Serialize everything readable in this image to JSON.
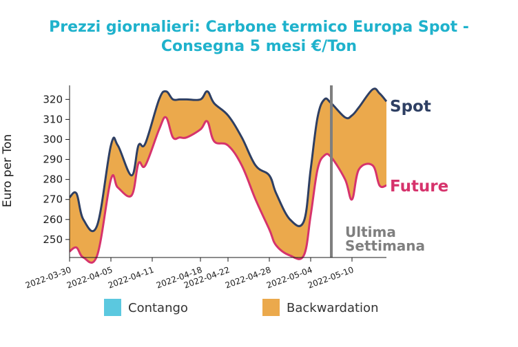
{
  "chart_data": {
    "type": "area",
    "title_line1": "Prezzi giornalieri: Carbone termico Europa Spot -",
    "title_line2": "Consegna 5 mesi €/Ton",
    "ylabel": "Euro per Ton",
    "ylim": [
      241,
      327
    ],
    "yticks": [
      250,
      260,
      270,
      280,
      290,
      300,
      310,
      320
    ],
    "xlim": [
      "2022-03-30",
      "2022-05-15"
    ],
    "xticks": [
      "2022-03-30",
      "2022-04-05",
      "2022-04-11",
      "2022-04-18",
      "2022-04-22",
      "2022-04-28",
      "2022-05-04",
      "2022-05-10"
    ],
    "dates": [
      "2022-03-30",
      "2022-03-31",
      "2022-04-01",
      "2022-04-03",
      "2022-04-05",
      "2022-04-06",
      "2022-04-08",
      "2022-04-09",
      "2022-04-10",
      "2022-04-12",
      "2022-04-13",
      "2022-04-14",
      "2022-04-15",
      "2022-04-16",
      "2022-04-18",
      "2022-04-19",
      "2022-04-20",
      "2022-04-22",
      "2022-04-24",
      "2022-04-26",
      "2022-04-28",
      "2022-04-29",
      "2022-05-01",
      "2022-05-03",
      "2022-05-04",
      "2022-05-05",
      "2022-05-06",
      "2022-05-07",
      "2022-05-09",
      "2022-05-10",
      "2022-05-11",
      "2022-05-13",
      "2022-05-14",
      "2022-05-15"
    ],
    "series": [
      {
        "name": "Spot",
        "color": "#2e3f63",
        "values": [
          271,
          273,
          260,
          257,
          297,
          297,
          282,
          297,
          298,
          320,
          324,
          320,
          320,
          320,
          320,
          324,
          318,
          312,
          301,
          287,
          282,
          273,
          260,
          259,
          285,
          311,
          320,
          318,
          311,
          312,
          316,
          325,
          323,
          319
        ]
      },
      {
        "name": "Future",
        "color": "#d6336c",
        "values": [
          244,
          246,
          241,
          242,
          280,
          276,
          272,
          288,
          287,
          305,
          311,
          301,
          301,
          301,
          305,
          309,
          299,
          297,
          287,
          270,
          255,
          247,
          242,
          242,
          262,
          285,
          292,
          291,
          280,
          270,
          285,
          287,
          277,
          277
        ]
      }
    ],
    "fill_colors": {
      "contango": "#5bc8df",
      "backwardation": "#eba94c"
    },
    "vline": {
      "date": "2022-05-07",
      "color": "#7f7f7f"
    },
    "annotation_line1": "Ultima",
    "annotation_line2": "Settimana",
    "legend": [
      {
        "label": "Contango",
        "color": "#5bc8df"
      },
      {
        "label": "Backwardation",
        "color": "#eba94c"
      }
    ],
    "legend_position": "bottom"
  }
}
